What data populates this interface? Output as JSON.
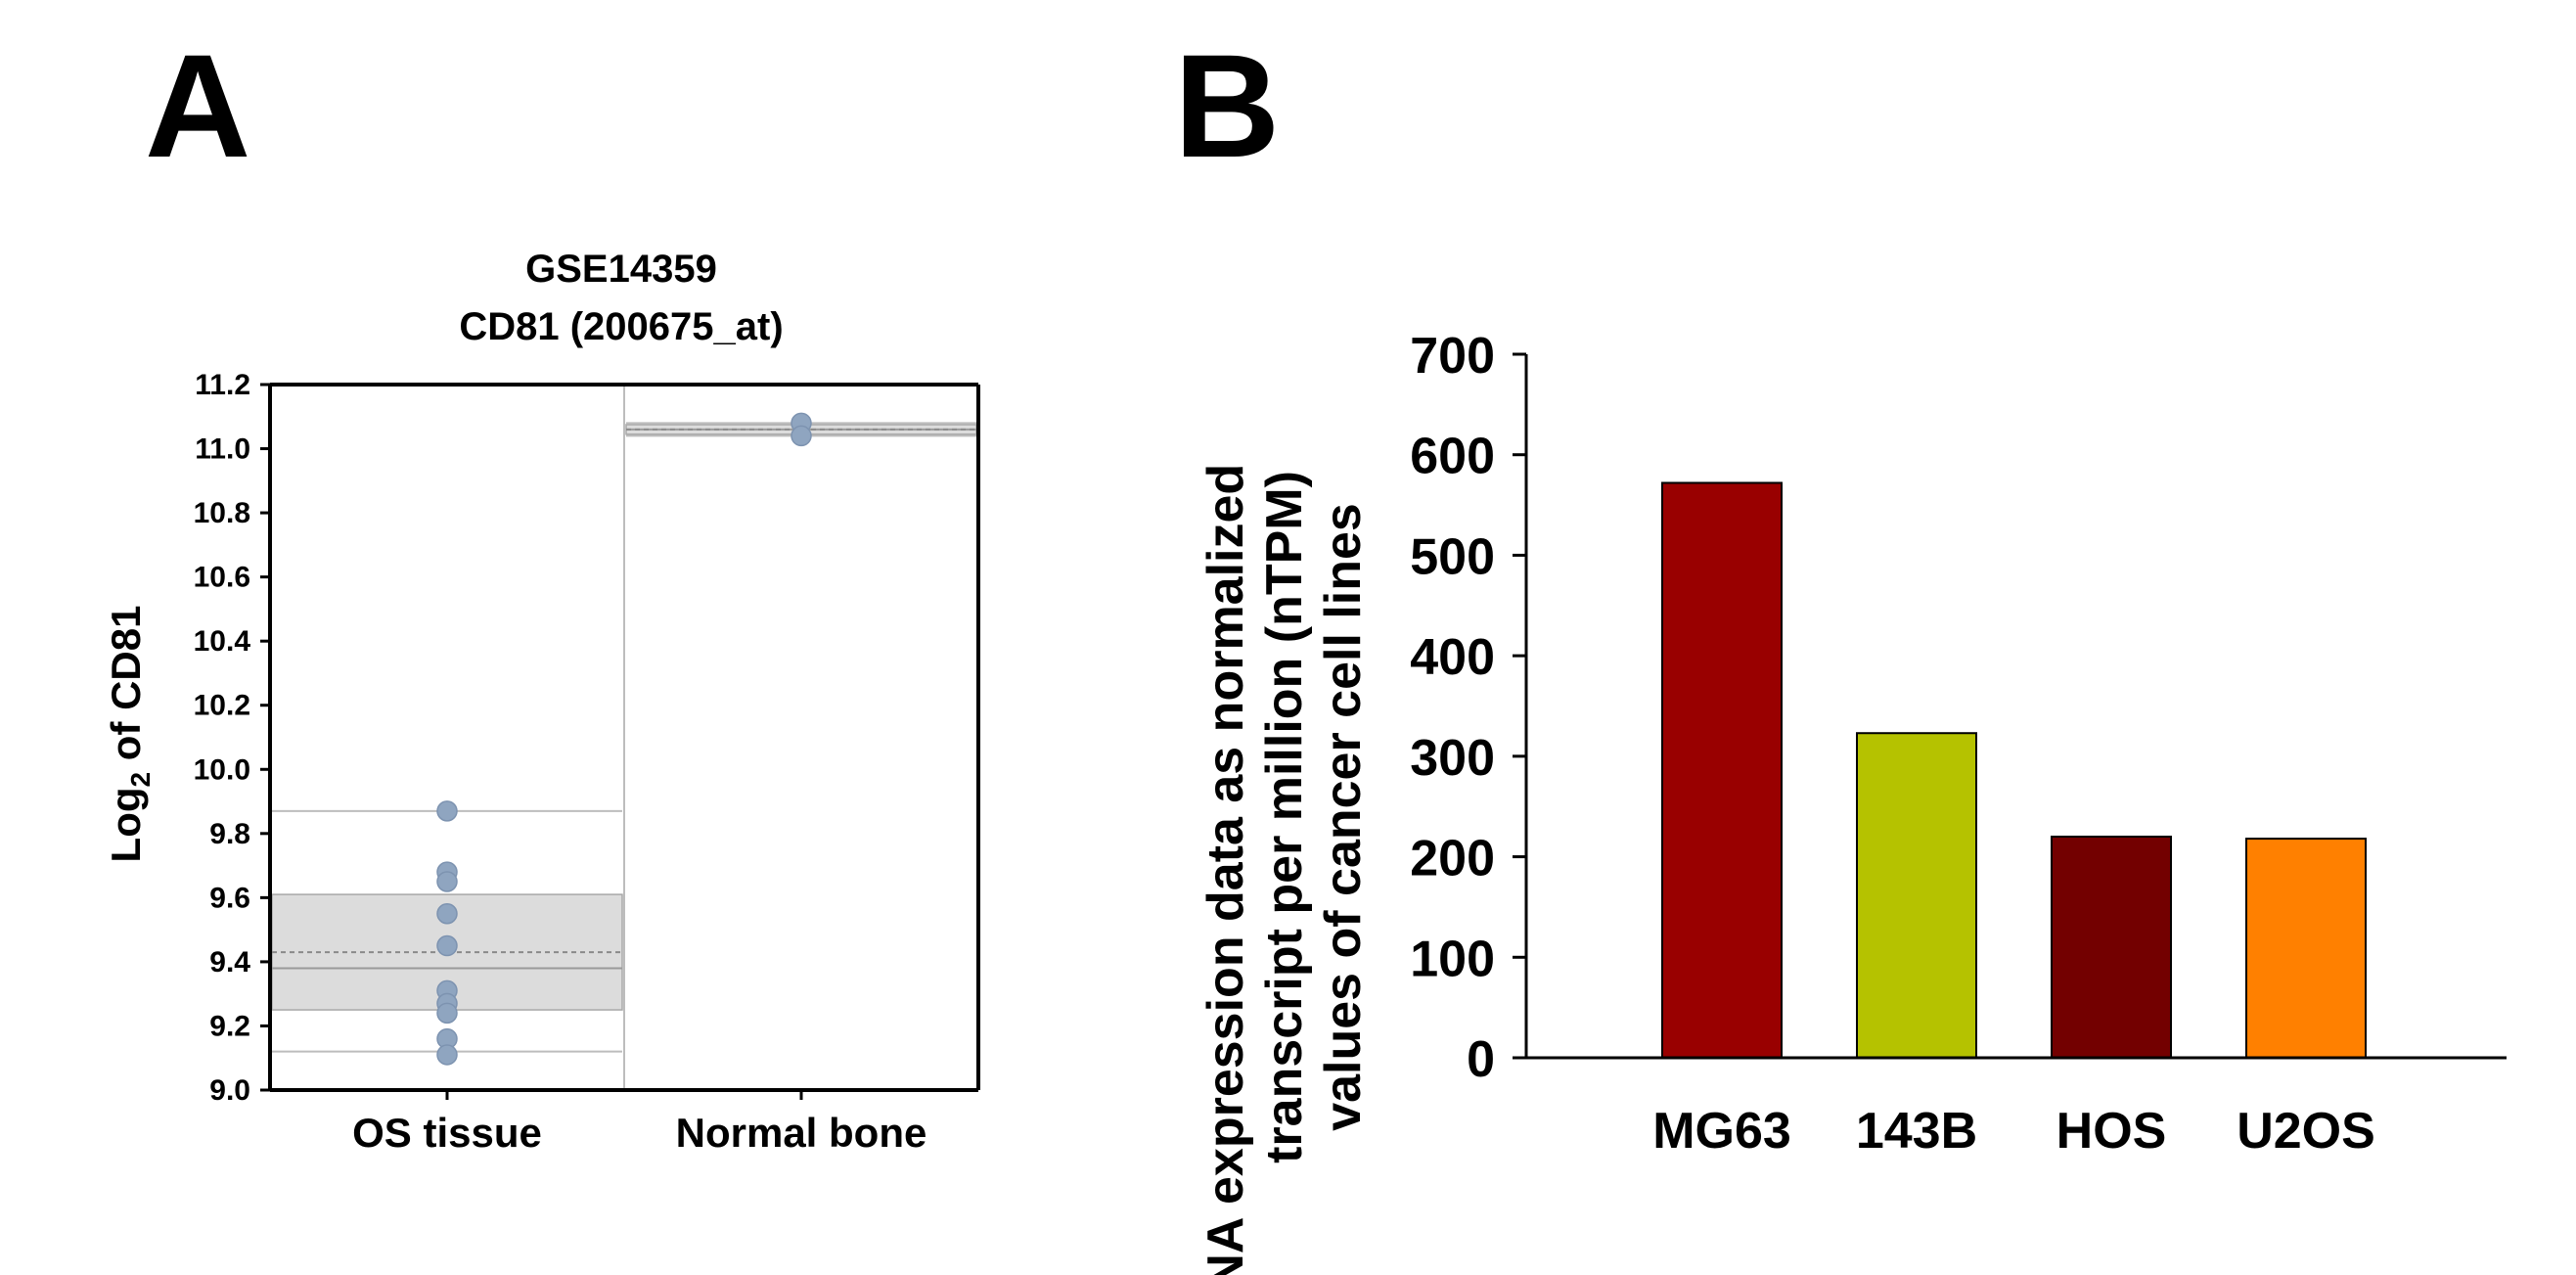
{
  "panels": {
    "a_label": "A",
    "b_label": "B"
  },
  "chart_data": [
    {
      "type": "scatter",
      "panel": "A",
      "title_line1": "GSE14359",
      "title_line2": "CD81 (200675_at)",
      "ylabel_prefix": "Log",
      "ylabel_sub": "2",
      "ylabel_suffix": " of CD81",
      "ylim": [
        9.0,
        11.2
      ],
      "yticks": [
        "9.0",
        "9.2",
        "9.4",
        "9.6",
        "9.8",
        "10.0",
        "10.2",
        "10.4",
        "10.6",
        "10.8",
        "11.0",
        "11.2"
      ],
      "categories": [
        "OS tissue",
        "Normal bone"
      ],
      "groups": [
        {
          "name": "OS tissue",
          "points": [
            9.87,
            9.68,
            9.65,
            9.55,
            9.45,
            9.31,
            9.27,
            9.24,
            9.16,
            9.11
          ],
          "q1": 9.25,
          "median": 9.38,
          "q3": 9.61,
          "mean": 9.43,
          "whisker_low": 9.12,
          "whisker_high": 9.87
        },
        {
          "name": "Normal bone",
          "points": [
            11.08,
            11.04
          ],
          "q1": 11.045,
          "median": 11.06,
          "q3": 11.075,
          "mean": 11.06,
          "whisker_low": 11.04,
          "whisker_high": 11.08
        }
      ],
      "colors": {
        "point": "#8fa5c0",
        "box": "#dcdcdc"
      }
    },
    {
      "type": "bar",
      "panel": "B",
      "ylabel_lines": [
        "RNA expression data as normalized",
        "transcript per million (nTPM)",
        "values of cancer cell lines"
      ],
      "ylim": [
        0,
        700
      ],
      "yticks": [
        "0",
        "100",
        "200",
        "300",
        "400",
        "500",
        "600",
        "700"
      ],
      "categories": [
        "MG63",
        "143B",
        "HOS",
        "U2OS"
      ],
      "values": [
        572,
        323,
        220,
        218
      ],
      "colors": [
        "#990000",
        "#b5c200",
        "#730000",
        "#ff8000"
      ]
    }
  ]
}
